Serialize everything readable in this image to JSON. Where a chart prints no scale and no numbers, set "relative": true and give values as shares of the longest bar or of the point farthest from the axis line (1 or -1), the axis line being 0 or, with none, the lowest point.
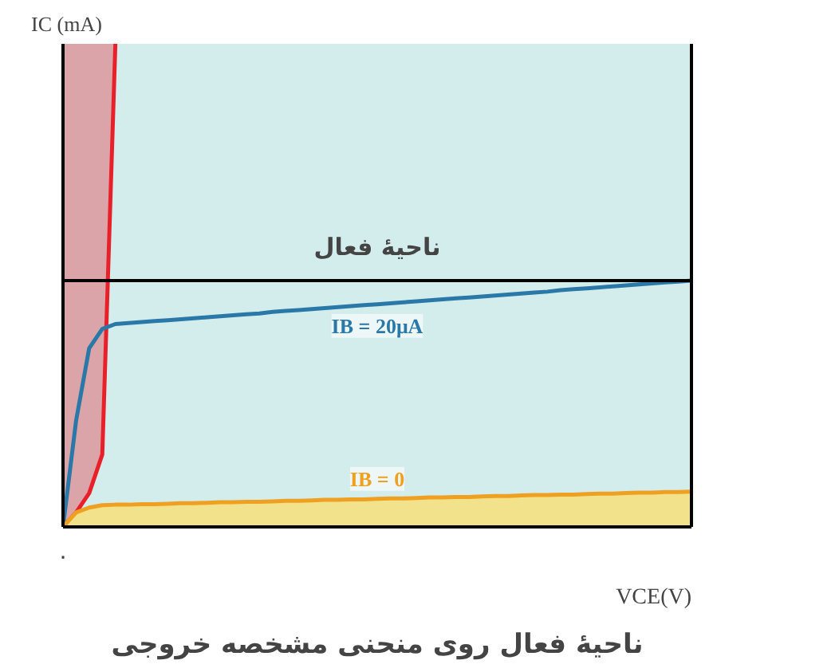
{
  "chart_data": {
    "type": "line",
    "relative": true,
    "title": "ناحیهٔ فعال روی منحنی مشخصه خروجی",
    "xlabel": "VCE(V)",
    "ylabel": "IC (mA)",
    "annotations": [
      "ناحیهٔ فعال",
      "۰"
    ],
    "categories": [
      null,
      null,
      null,
      null,
      null,
      null,
      null,
      null,
      null,
      null,
      null,
      null,
      null,
      null,
      null,
      null,
      null,
      null,
      null,
      null,
      null,
      null,
      null,
      null,
      null,
      null,
      null,
      null,
      null,
      null,
      null,
      null,
      null,
      null,
      null,
      null,
      null,
      null,
      null,
      null,
      null,
      null,
      null,
      null,
      null,
      null,
      null,
      null,
      null
    ],
    "ref_lines": [
      {
        "axis": "y",
        "value": 0.51,
        "color": "#000000"
      }
    ],
    "series": [
      {
        "color": "#e8202a",
        "values": [
          0,
          0.03,
          0.07,
          0.15,
          1,
          null,
          null,
          null,
          null,
          null,
          null,
          null,
          null,
          null,
          null,
          null,
          null,
          null,
          null,
          null,
          null,
          null,
          null,
          null,
          null,
          null,
          null,
          null,
          null,
          null,
          null,
          null,
          null,
          null,
          null,
          null,
          null,
          null,
          null,
          null,
          null,
          null,
          null,
          null,
          null,
          null,
          null,
          null,
          null
        ]
      },
      {
        "name": "IB = 20μA",
        "color": "#2a78a8",
        "values": [
          0,
          0.22,
          0.37,
          0.41,
          0.42,
          0.422,
          0.424,
          0.426,
          0.428,
          0.43,
          0.432,
          0.434,
          0.436,
          0.438,
          0.44,
          0.442,
          0.445,
          0.447,
          0.449,
          0.451,
          0.453,
          0.455,
          0.457,
          0.459,
          0.461,
          0.463,
          0.465,
          0.467,
          0.469,
          0.471,
          0.473,
          0.475,
          0.477,
          0.479,
          0.481,
          0.483,
          0.485,
          0.487,
          0.49,
          0.492,
          0.494,
          0.496,
          0.498,
          0.5,
          0.502,
          0.504,
          0.506,
          0.508,
          0.51
        ]
      },
      {
        "name": "IB = 0",
        "type": "area",
        "color": "#f0a020",
        "values": [
          0,
          0.03,
          0.04,
          0.045,
          0.046,
          0.046,
          0.047,
          0.047,
          0.048,
          0.049,
          0.049,
          0.05,
          0.051,
          0.051,
          0.052,
          0.052,
          0.053,
          0.054,
          0.054,
          0.055,
          0.056,
          0.056,
          0.057,
          0.057,
          0.058,
          0.059,
          0.059,
          0.06,
          0.061,
          0.061,
          0.062,
          0.062,
          0.063,
          0.064,
          0.064,
          0.065,
          0.066,
          0.066,
          0.067,
          0.067,
          0.068,
          0.069,
          0.069,
          0.07,
          0.071,
          0.071,
          0.072,
          0.072,
          0.073
        ]
      }
    ]
  }
}
